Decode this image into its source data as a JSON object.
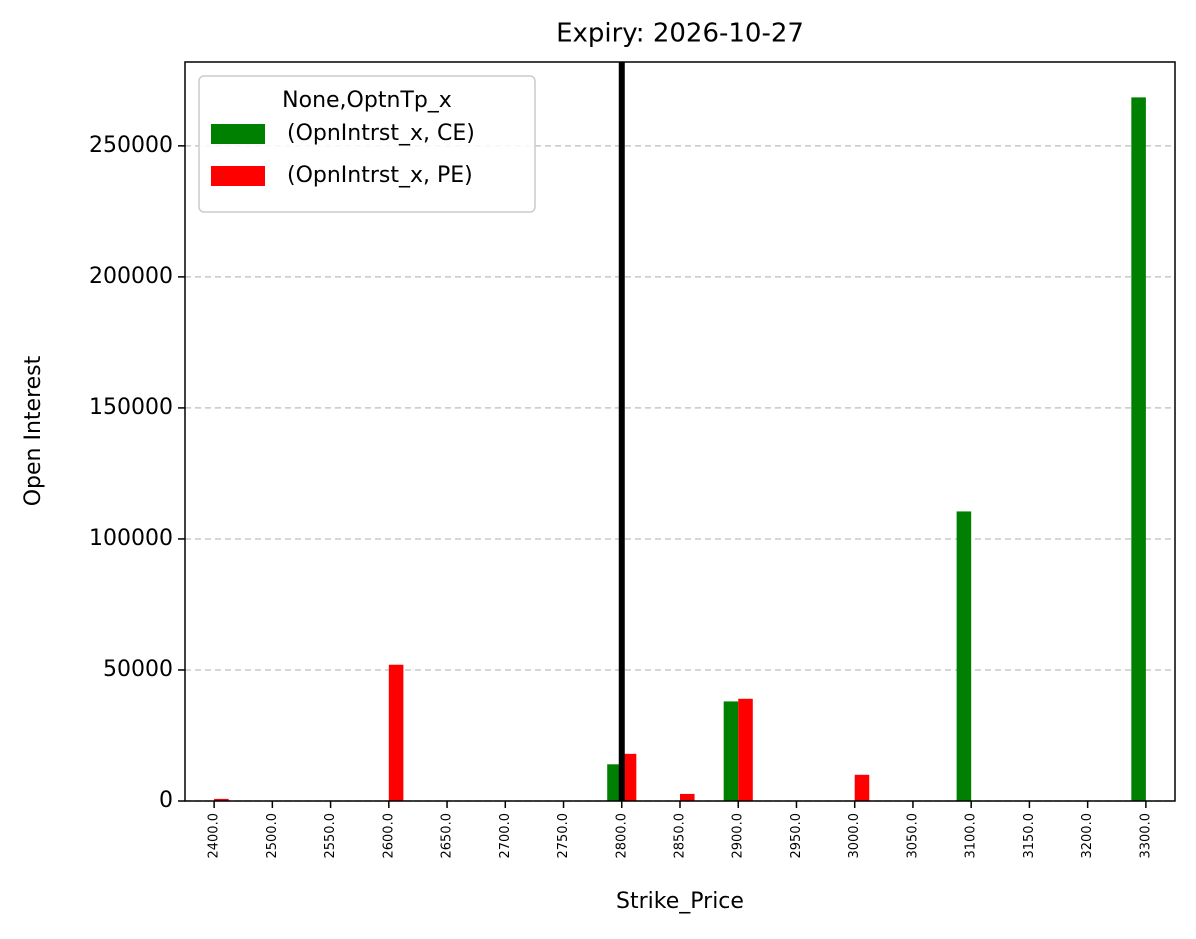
{
  "chart_data": {
    "type": "bar",
    "title": "Expiry: 2026-10-27",
    "x_label": "Strike_Price",
    "y_label": "Open Interest",
    "legend_title": "None,OptnTp_x",
    "legend_position": "upper-left",
    "categories": [
      "2400.0",
      "2500.0",
      "2550.0",
      "2600.0",
      "2650.0",
      "2700.0",
      "2750.0",
      "2800.0",
      "2850.0",
      "2900.0",
      "2950.0",
      "3000.0",
      "3050.0",
      "3100.0",
      "3150.0",
      "3200.0",
      "3300.0"
    ],
    "series": [
      {
        "name": "(OpnIntrst_x, CE)",
        "color": "#008000",
        "values": [
          0,
          0,
          0,
          0,
          0,
          0,
          0,
          14000,
          0,
          38000,
          0,
          0,
          0,
          110500,
          0,
          0,
          268500
        ]
      },
      {
        "name": "(OpnIntrst_x, PE)",
        "color": "#ff0000",
        "values": [
          800,
          0,
          0,
          52000,
          0,
          0,
          0,
          18000,
          2700,
          39000,
          0,
          10000,
          0,
          0,
          0,
          0,
          0
        ]
      }
    ],
    "vline_at": "2800.0",
    "vline_color": "#000000",
    "ylim": [
      0,
      282000
    ],
    "yticks": [
      0,
      50000,
      100000,
      150000,
      200000,
      250000
    ],
    "grid": true
  }
}
